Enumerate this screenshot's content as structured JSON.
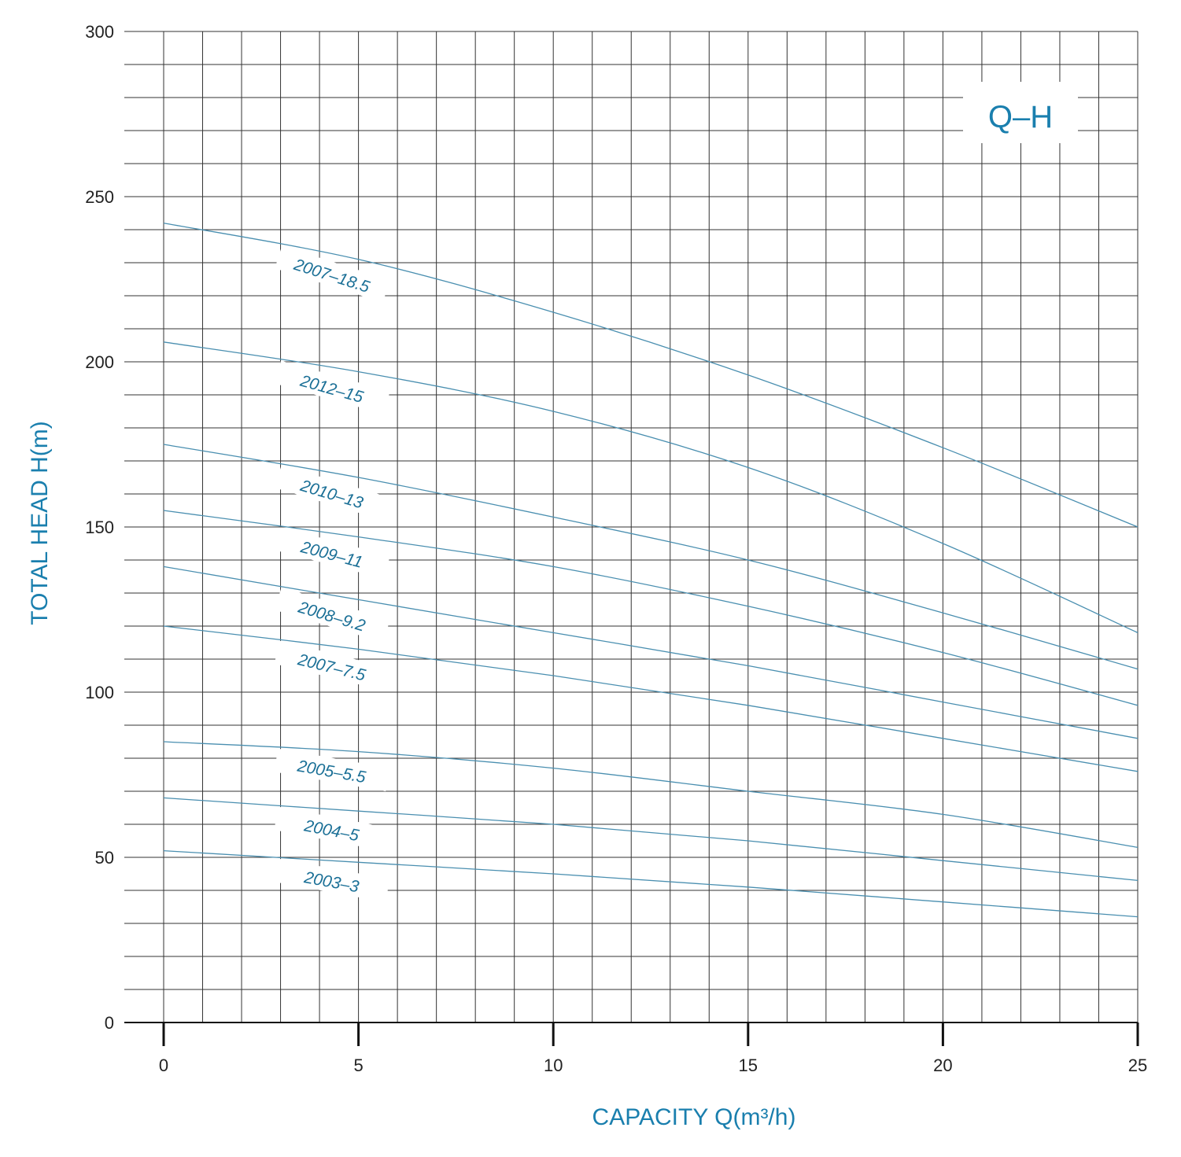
{
  "chart_data": {
    "type": "line",
    "title": "Q–H",
    "xlabel": "CAPACITY Q(m³/h)",
    "ylabel": "TOTAL HEAD H(m)",
    "xlim": [
      0,
      25
    ],
    "ylim": [
      0,
      300
    ],
    "xticks": [
      "0",
      "5",
      "10",
      "15",
      "20",
      "25"
    ],
    "yticks": [
      "0",
      "50",
      "100",
      "150",
      "200",
      "250",
      "300"
    ],
    "grid": true,
    "colors": {
      "curve": "#4a8fb0",
      "grid": "#333333",
      "text": "#1a7fae"
    },
    "series": [
      {
        "name": "2007–18.5",
        "x": [
          0,
          5,
          10,
          15,
          20,
          25
        ],
        "y": [
          242,
          231,
          215,
          196,
          174,
          150
        ]
      },
      {
        "name": "2012–15",
        "x": [
          0,
          5,
          10,
          15,
          20,
          25
        ],
        "y": [
          206,
          197,
          185,
          168,
          145,
          118
        ]
      },
      {
        "name": "2010–13",
        "x": [
          0,
          5,
          10,
          15,
          20,
          25
        ],
        "y": [
          175,
          165,
          153,
          140,
          124,
          107
        ]
      },
      {
        "name": "2009–11",
        "x": [
          0,
          5,
          10,
          15,
          20,
          25
        ],
        "y": [
          155,
          147,
          138,
          126,
          112,
          96
        ]
      },
      {
        "name": "2008–9.2",
        "x": [
          0,
          5,
          10,
          15,
          20,
          25
        ],
        "y": [
          138,
          128,
          118,
          108,
          97,
          86
        ]
      },
      {
        "name": "2007–7.5",
        "x": [
          0,
          5,
          10,
          15,
          20,
          25
        ],
        "y": [
          120,
          113,
          105,
          96,
          86,
          76
        ]
      },
      {
        "name": "2005–5.5",
        "x": [
          0,
          5,
          10,
          15,
          20,
          25
        ],
        "y": [
          85,
          82,
          77,
          70,
          63,
          53
        ]
      },
      {
        "name": "2004–5",
        "x": [
          0,
          5,
          10,
          15,
          20,
          25
        ],
        "y": [
          68,
          64,
          60,
          55,
          49,
          43
        ]
      },
      {
        "name": "2003–3",
        "x": [
          0,
          5,
          10,
          15,
          20,
          25
        ],
        "y": [
          52,
          48.5,
          45,
          41,
          36.5,
          32
        ]
      }
    ]
  }
}
